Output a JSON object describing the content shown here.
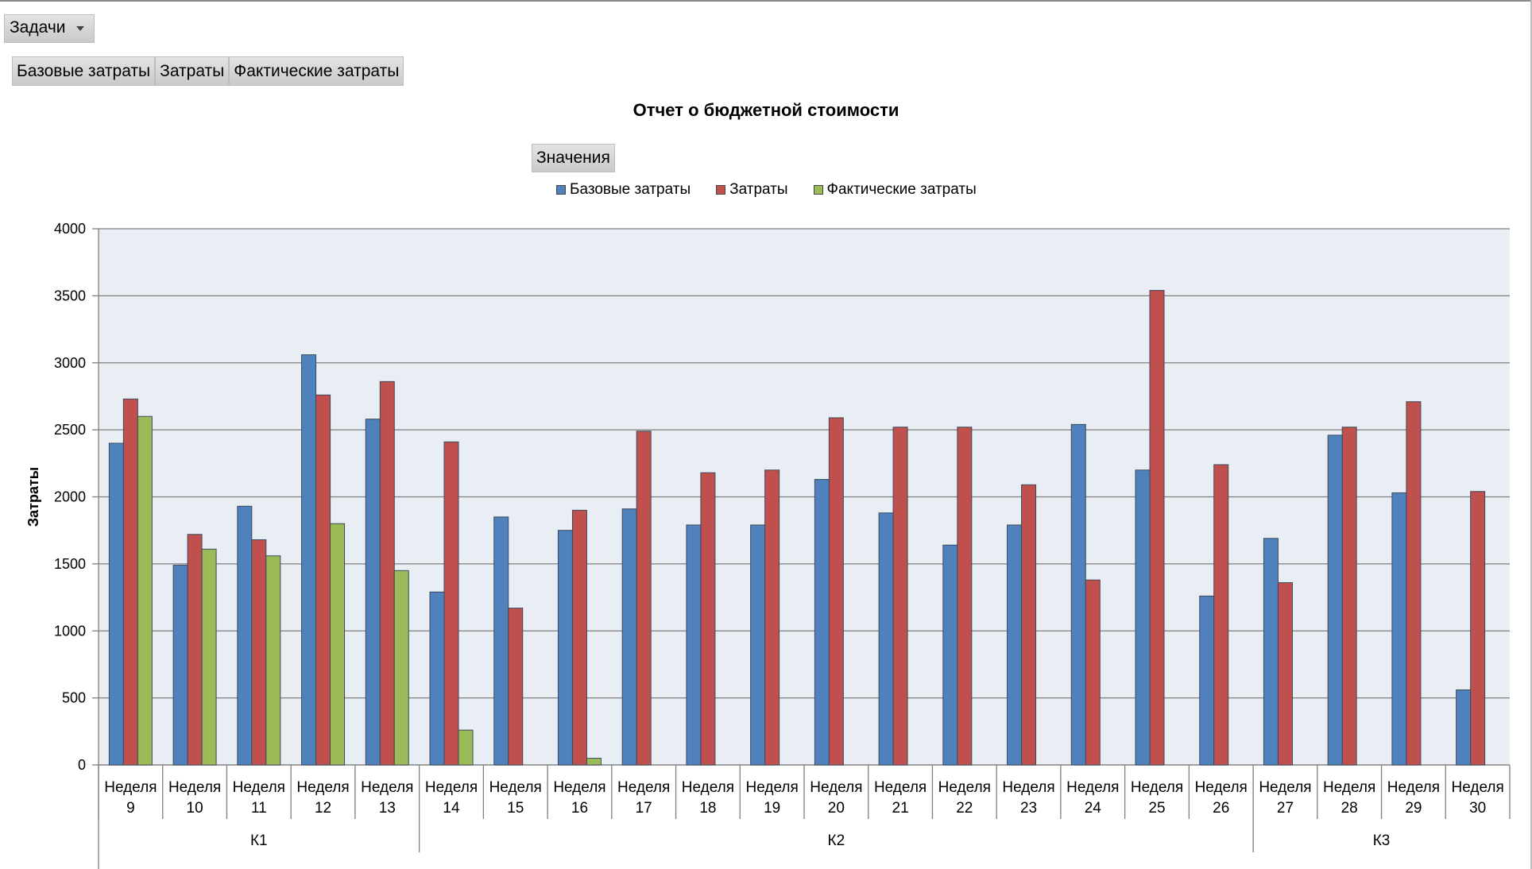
{
  "filter": {
    "label": "Задачи"
  },
  "series_buttons": [
    "Базовые затраты",
    "Затраты",
    "Фактические затраты"
  ],
  "values_button": "Значения",
  "colors": {
    "base": "#4F81BD",
    "cost": "#C0504D",
    "actual": "#9BBB59",
    "plot_bg": "#E9EDF4"
  },
  "chart_data": {
    "type": "bar",
    "title": "Отчет о бюджетной стоимости",
    "ylabel": "Затраты",
    "ylim": [
      0,
      4000
    ],
    "yticks": [
      0,
      500,
      1000,
      1500,
      2000,
      2500,
      3000,
      3500,
      4000
    ],
    "grid": true,
    "legend_position": "top",
    "categories": [
      [
        "Неделя",
        "9"
      ],
      [
        "Неделя",
        "10"
      ],
      [
        "Неделя",
        "11"
      ],
      [
        "Неделя",
        "12"
      ],
      [
        "Неделя",
        "13"
      ],
      [
        "Неделя",
        "14"
      ],
      [
        "Неделя",
        "15"
      ],
      [
        "Неделя",
        "16"
      ],
      [
        "Неделя",
        "17"
      ],
      [
        "Неделя",
        "18"
      ],
      [
        "Неделя",
        "19"
      ],
      [
        "Неделя",
        "20"
      ],
      [
        "Неделя",
        "21"
      ],
      [
        "Неделя",
        "22"
      ],
      [
        "Неделя",
        "23"
      ],
      [
        "Неделя",
        "24"
      ],
      [
        "Неделя",
        "25"
      ],
      [
        "Неделя",
        "26"
      ],
      [
        "Неделя",
        "27"
      ],
      [
        "Неделя",
        "28"
      ],
      [
        "Неделя",
        "29"
      ],
      [
        "Неделя",
        "30"
      ]
    ],
    "groups": [
      {
        "label": "К1",
        "count": 5
      },
      {
        "label": "К2",
        "count": 13
      },
      {
        "label": "К3",
        "count": 4
      }
    ],
    "series": [
      {
        "name": "Базовые затраты",
        "color": "#4F81BD",
        "values": [
          2400,
          1490,
          1930,
          3060,
          2580,
          1290,
          1850,
          1750,
          1910,
          1790,
          1790,
          2130,
          1880,
          1640,
          1790,
          2540,
          2200,
          1260,
          1690,
          2460,
          2030,
          560
        ]
      },
      {
        "name": "Затраты",
        "color": "#C0504D",
        "values": [
          2730,
          1720,
          1680,
          2760,
          2860,
          2410,
          1170,
          1900,
          2490,
          2180,
          2200,
          2590,
          2520,
          2520,
          2090,
          1380,
          3540,
          2240,
          1360,
          2520,
          2710,
          2040
        ]
      },
      {
        "name": "Фактические затраты",
        "color": "#9BBB59",
        "values": [
          2600,
          1610,
          1560,
          1800,
          1450,
          260,
          0,
          50,
          0,
          0,
          0,
          0,
          0,
          0,
          0,
          0,
          0,
          0,
          0,
          0,
          0,
          0
        ]
      }
    ]
  }
}
